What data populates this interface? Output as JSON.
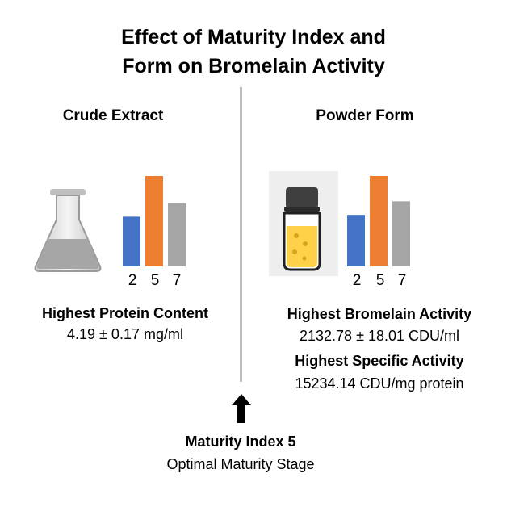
{
  "title_line1": "Effect of Maturity Index and",
  "title_line2": "Form on Bromelain Activity",
  "left": {
    "heading": "Crude Extract",
    "icon": "flask-icon",
    "chart": {
      "type": "bar",
      "categories": [
        "2",
        "5",
        "7"
      ],
      "values": [
        0.55,
        1.0,
        0.7
      ],
      "colors": [
        "#4472c4",
        "#ed7d31",
        "#a5a5a5"
      ]
    },
    "result_label": "Highest Protein Content",
    "result_value": "4.19 ± 0.17 mg/ml"
  },
  "right": {
    "heading": "Powder Form",
    "icon": "vial-icon",
    "chart": {
      "type": "bar",
      "categories": [
        "2",
        "5",
        "7"
      ],
      "values": [
        0.57,
        1.0,
        0.72
      ],
      "colors": [
        "#4472c4",
        "#ed7d31",
        "#a5a5a5"
      ]
    },
    "result1_label": "Highest Bromelain Activity",
    "result1_value": "2132.78 ± 18.01 CDU/ml",
    "result2_label": "Highest Specific Activity",
    "result2_value": "15234.14 CDU/mg protein"
  },
  "bottom": {
    "label": "Maturity Index 5",
    "sublabel": "Optimal Maturity Stage",
    "arrow": "up-arrow-icon"
  }
}
